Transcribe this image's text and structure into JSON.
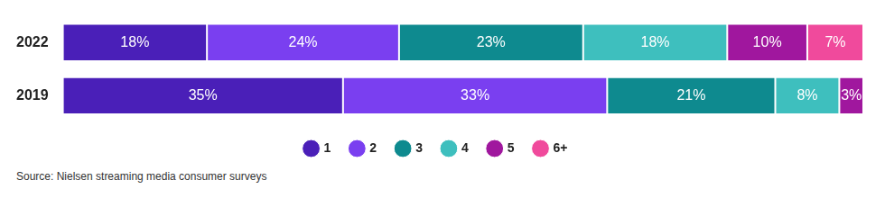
{
  "chart_data": {
    "type": "bar",
    "orientation": "horizontal",
    "stacked": true,
    "categories": [
      "2022",
      "2019"
    ],
    "series": [
      {
        "name": "1",
        "color": "#4a1fb8",
        "values": [
          18,
          35
        ],
        "value_labels": [
          "18%",
          "35%"
        ]
      },
      {
        "name": "2",
        "color": "#7a3ff0",
        "values": [
          24,
          33
        ],
        "value_labels": [
          "24%",
          "33%"
        ]
      },
      {
        "name": "3",
        "color": "#0e8a8f",
        "values": [
          23,
          21
        ],
        "value_labels": [
          "23%",
          "21%"
        ]
      },
      {
        "name": "4",
        "color": "#3ebfbe",
        "values": [
          18,
          8
        ],
        "value_labels": [
          "18%",
          "8%"
        ]
      },
      {
        "name": "5",
        "color": "#a0179e",
        "values": [
          10,
          3
        ],
        "value_labels": [
          "10%",
          "3%"
        ]
      },
      {
        "name": "6+",
        "color": "#f04a9c",
        "values": [
          7,
          null
        ],
        "value_labels": [
          "7%",
          null
        ]
      }
    ],
    "xlim": [
      0,
      100
    ],
    "data_labels": true,
    "tick_labels": "y",
    "grid": false,
    "legend": "bottom",
    "source": "Source: Nielsen streaming media consumer surveys"
  }
}
